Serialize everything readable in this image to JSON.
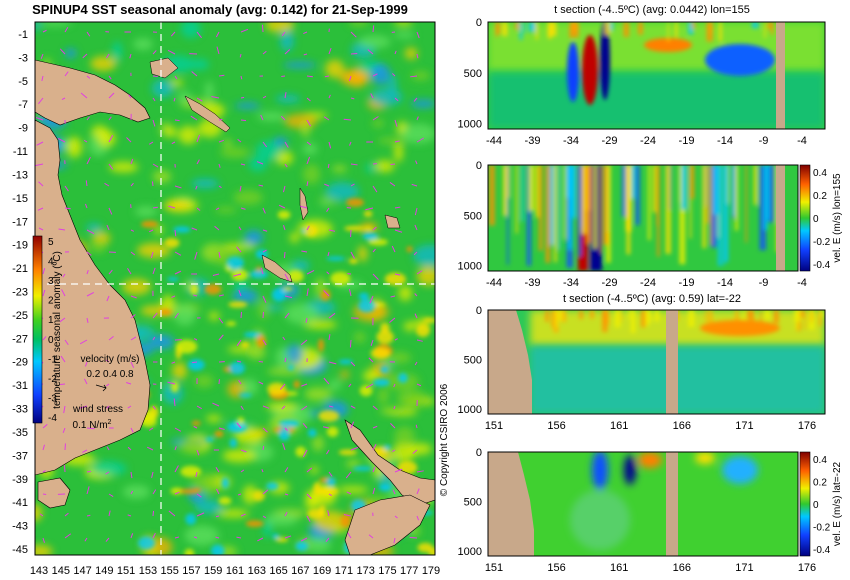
{
  "colors": {
    "land": "#d9b08c",
    "section_land": "#c8a88a",
    "ocean_base": "#2bbf3a",
    "ref_line": "#ffffff",
    "vector": "#e040e0"
  },
  "chart_data": [
    {
      "type": "heatmap",
      "panel": "map",
      "title": "SPINUP4 SST seasonal anomaly (avg: 0.142) for 21-Sep-1999",
      "x_ticks": [
        "143",
        "145",
        "147",
        "149",
        "151",
        "153",
        "155",
        "157",
        "159",
        "161",
        "163",
        "165",
        "167",
        "169",
        "171",
        "173",
        "175",
        "177",
        "179"
      ],
      "y_ticks": [
        "-1",
        "-3",
        "-5",
        "-7",
        "-9",
        "-11",
        "-13",
        "-15",
        "-17",
        "-19",
        "-21",
        "-23",
        "-25",
        "-27",
        "-29",
        "-31",
        "-33",
        "-35",
        "-37",
        "-39",
        "-41",
        "-43",
        "-45"
      ],
      "xlim": [
        142.5,
        180
      ],
      "ylim": [
        -45,
        0
      ],
      "ref_lon": 155,
      "ref_lat": -22,
      "colorbar": {
        "label": "temperature seasonal anomaly (ºC)",
        "ticks": [
          "5",
          "4",
          "3",
          "2",
          "1",
          "0",
          "-1",
          "-2",
          "-3",
          "-4"
        ],
        "range": [
          -4,
          5
        ]
      },
      "velocity_legend": {
        "label": "velocity (m/s)",
        "values": "0.2 0.4 0.8"
      },
      "wind_legend": {
        "label": "wind stress",
        "value": "0.1 N/m",
        "sup": "2"
      }
    },
    {
      "type": "heatmap",
      "panel": "section1",
      "title": "t section (-4..5ºC) (avg: 0.0442) lon=155",
      "x_ticks": [
        "-44",
        "-39",
        "-34",
        "-29",
        "-24",
        "-19",
        "-14",
        "-9",
        "-4"
      ],
      "y_ticks": [
        "0",
        "500",
        "1000"
      ],
      "xlim": [
        -45,
        0
      ],
      "ylim": [
        0,
        1050
      ]
    },
    {
      "type": "heatmap",
      "panel": "section2",
      "title": "",
      "x_ticks": [
        "-44",
        "-39",
        "-34",
        "-29",
        "-24",
        "-19",
        "-14",
        "-9",
        "-4"
      ],
      "y_ticks": [
        "0",
        "500",
        "1000"
      ],
      "colorbar": {
        "label": "vel. E (m/s) lon=155",
        "ticks": [
          "0.4",
          "0.2",
          "0",
          "-0.2",
          "-0.4"
        ],
        "range": [
          -0.4,
          0.4
        ]
      }
    },
    {
      "type": "heatmap",
      "panel": "section3",
      "title": "t section (-4..5ºC) (avg: 0.59) lat=-22",
      "x_ticks": [
        "151",
        "156",
        "161",
        "166",
        "171",
        "176"
      ],
      "y_ticks": [
        "0",
        "500",
        "1000"
      ],
      "xlim": [
        150,
        180
      ],
      "ylim": [
        0,
        1050
      ]
    },
    {
      "type": "heatmap",
      "panel": "section4",
      "title": "",
      "x_ticks": [
        "151",
        "156",
        "161",
        "166",
        "171",
        "176"
      ],
      "y_ticks": [
        "0",
        "500",
        "1000"
      ],
      "colorbar": {
        "label": "vel. E (m/s) lat=-22",
        "ticks": [
          "0.4",
          "0.2",
          "0",
          "-0.2",
          "-0.4"
        ],
        "range": [
          -0.4,
          0.4
        ]
      }
    }
  ],
  "copyright": "© Copyright CSIRO 2006"
}
